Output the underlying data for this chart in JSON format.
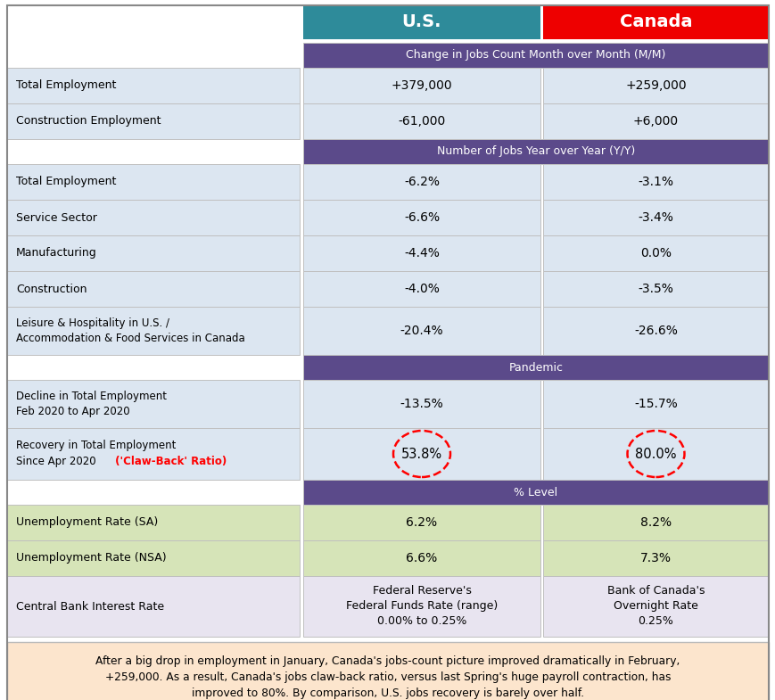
{
  "header_us_text": "U.S.",
  "header_canada_text": "Canada",
  "header_us_color": "#2e8b9a",
  "header_canada_color": "#ee0000",
  "section_header_color": "#5b4a8a",
  "section_header_text_color": "#ffffff",
  "row_bg_light": "#dce6f1",
  "row_bg_green": "#d6e4b8",
  "row_bg_lavender": "#e8e4f0",
  "footer_bg": "#fce5cd",
  "rows": [
    {
      "type": "header_cols"
    },
    {
      "type": "section_header",
      "label": "Change in Jobs Count Month over Month (M/M)"
    },
    {
      "type": "data_row",
      "label": "Total Employment",
      "us": "+379,000",
      "canada": "+259,000",
      "bg": "light"
    },
    {
      "type": "data_row",
      "label": "Construction Employment",
      "us": "-61,000",
      "canada": "+6,000",
      "bg": "light"
    },
    {
      "type": "section_header",
      "label": "Number of Jobs Year over Year (Y/Y)"
    },
    {
      "type": "data_row",
      "label": "Total Employment",
      "us": "-6.2%",
      "canada": "-3.1%",
      "bg": "light"
    },
    {
      "type": "data_row",
      "label": "Service Sector",
      "us": "-6.6%",
      "canada": "-3.4%",
      "bg": "light"
    },
    {
      "type": "data_row",
      "label": "Manufacturing",
      "us": "-4.4%",
      "canada": "0.0%",
      "bg": "light"
    },
    {
      "type": "data_row",
      "label": "Construction",
      "us": "-4.0%",
      "canada": "-3.5%",
      "bg": "light"
    },
    {
      "type": "data_row_2line",
      "label": "Leisure & Hospitality in U.S. /\nAccommodation & Food Services in Canada",
      "us": "-20.4%",
      "canada": "-26.6%",
      "bg": "light"
    },
    {
      "type": "section_header",
      "label": "Pandemic"
    },
    {
      "type": "data_row_2line",
      "label": "Decline in Total Employment\nFeb 2020 to Apr 2020",
      "us": "-13.5%",
      "canada": "-15.7%",
      "bg": "light"
    },
    {
      "type": "data_row_circle",
      "label": "Recovery in Total Employment\nSince Apr 2020",
      "label_red": " ('Claw-Back' Ratio)",
      "us": "53.8%",
      "canada": "80.0%",
      "bg": "light"
    },
    {
      "type": "section_header",
      "label": "% Level"
    },
    {
      "type": "data_row",
      "label": "Unemployment Rate (SA)",
      "us": "6.2%",
      "canada": "8.2%",
      "bg": "green"
    },
    {
      "type": "data_row",
      "label": "Unemployment Rate (NSA)",
      "us": "6.6%",
      "canada": "7.3%",
      "bg": "green"
    },
    {
      "type": "data_row_3line",
      "label": "Central Bank Interest Rate",
      "us": "Federal Reserve's\nFederal Funds Rate (range)\n0.00% to 0.25%",
      "canada": "Bank of Canada's\nOvernight Rate\n0.25%",
      "bg": "lavender"
    }
  ],
  "footer_text": "After a big drop in employment in January, Canada's jobs-count picture improved dramatically in February,\n+259,000. As a result, Canada's jobs claw-back ratio, versus last Spring's huge payroll contraction, has\nimproved to 80%. By comparison, U.S. jobs recovery is barely over half."
}
